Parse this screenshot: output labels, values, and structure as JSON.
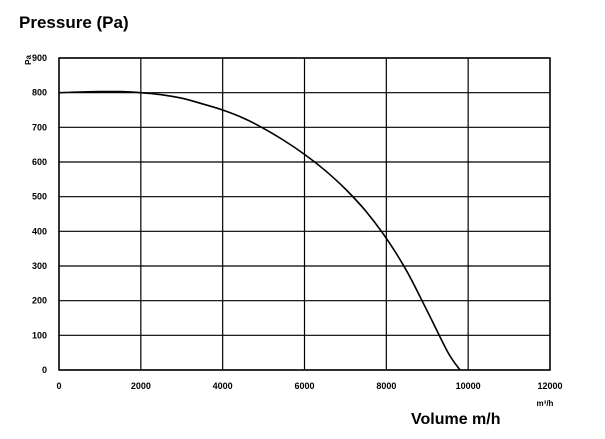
{
  "chart_data": {
    "type": "line",
    "title": "Pressure (Pa)",
    "xlabel": "Volume m/h",
    "ylabel": "",
    "x_unit": "m³/h",
    "y_unit": "Pa",
    "xlim": [
      0,
      12000
    ],
    "ylim": [
      0,
      900
    ],
    "x_ticks": [
      0,
      2000,
      4000,
      6000,
      8000,
      10000,
      12000
    ],
    "y_ticks": [
      0,
      100,
      200,
      300,
      400,
      500,
      600,
      700,
      800,
      900
    ],
    "grid": true,
    "series": [
      {
        "x": [
          0,
          500,
          1000,
          1500,
          2000,
          2500,
          3000,
          3500,
          4000,
          4500,
          5000,
          5500,
          6000,
          6500,
          7000,
          7500,
          8000,
          8500,
          9000,
          9500,
          9800
        ],
        "y": [
          800,
          802,
          803,
          803,
          800,
          794,
          784,
          768,
          750,
          727,
          697,
          662,
          622,
          576,
          522,
          458,
          380,
          285,
          170,
          52,
          0
        ],
        "color": "#000000"
      }
    ]
  }
}
